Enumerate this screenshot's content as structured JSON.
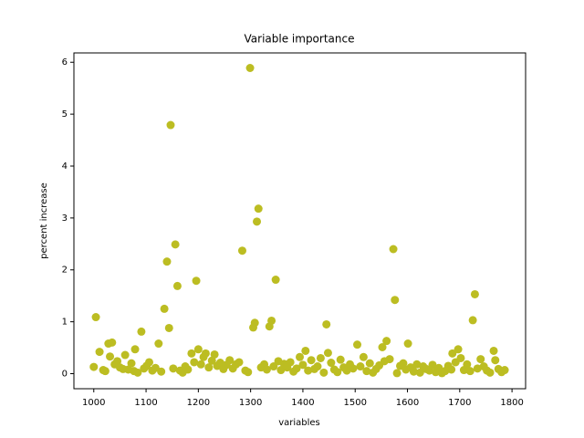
{
  "chart_data": {
    "type": "scatter",
    "title": "Variable importance",
    "x_label": "variables",
    "y_label": "percent increase",
    "color": "#bcbd22",
    "xlim": [
      962,
      1826
    ],
    "ylim": [
      -0.29,
      6.18
    ],
    "xticks": [
      1000,
      1100,
      1200,
      1300,
      1400,
      1500,
      1600,
      1700,
      1800
    ],
    "yticks": [
      0,
      1,
      2,
      3,
      4,
      5,
      6
    ],
    "x": [
      1000,
      1004,
      1011,
      1018,
      1022,
      1028,
      1031,
      1035,
      1040,
      1045,
      1050,
      1056,
      1060,
      1066,
      1072,
      1077,
      1079,
      1084,
      1091,
      1096,
      1101,
      1106,
      1112,
      1118,
      1124,
      1129,
      1135,
      1140,
      1144,
      1147,
      1152,
      1156,
      1160,
      1165,
      1170,
      1175,
      1180,
      1187,
      1192,
      1196,
      1200,
      1205,
      1210,
      1214,
      1220,
      1226,
      1231,
      1236,
      1242,
      1248,
      1254,
      1260,
      1266,
      1272,
      1278,
      1284,
      1290,
      1295,
      1299,
      1305,
      1308,
      1312,
      1315,
      1320,
      1326,
      1331,
      1336,
      1340,
      1344,
      1348,
      1353,
      1358,
      1364,
      1370,
      1376,
      1382,
      1388,
      1394,
      1400,
      1405,
      1410,
      1416,
      1422,
      1428,
      1434,
      1440,
      1445,
      1448,
      1454,
      1460,
      1466,
      1472,
      1478,
      1484,
      1490,
      1496,
      1504,
      1510,
      1516,
      1522,
      1528,
      1534,
      1540,
      1546,
      1552,
      1556,
      1560,
      1566,
      1573,
      1576,
      1580,
      1586,
      1592,
      1597,
      1601,
      1606,
      1612,
      1618,
      1624,
      1630,
      1636,
      1642,
      1648,
      1654,
      1660,
      1666,
      1672,
      1678,
      1684,
      1686,
      1692,
      1697,
      1702,
      1708,
      1714,
      1720,
      1725,
      1729,
      1734,
      1740,
      1746,
      1752,
      1758,
      1765,
      1768,
      1774,
      1780,
      1786
    ],
    "values": [
      0.13,
      1.09,
      0.42,
      0.07,
      0.05,
      0.58,
      0.33,
      0.6,
      0.18,
      0.24,
      0.12,
      0.09,
      0.36,
      0.08,
      0.2,
      0.05,
      0.47,
      0.02,
      0.81,
      0.1,
      0.15,
      0.22,
      0.06,
      0.11,
      0.58,
      0.04,
      1.25,
      2.16,
      0.88,
      4.79,
      0.1,
      2.49,
      1.69,
      0.06,
      0.02,
      0.14,
      0.08,
      0.39,
      0.22,
      1.79,
      0.47,
      0.18,
      0.32,
      0.39,
      0.12,
      0.25,
      0.37,
      0.15,
      0.21,
      0.09,
      0.17,
      0.26,
      0.1,
      0.18,
      0.22,
      2.37,
      0.06,
      0.03,
      5.89,
      0.89,
      0.98,
      2.93,
      3.18,
      0.12,
      0.18,
      0.08,
      0.91,
      1.02,
      0.14,
      1.81,
      0.24,
      0.07,
      0.19,
      0.12,
      0.22,
      0.04,
      0.1,
      0.32,
      0.17,
      0.44,
      0.06,
      0.26,
      0.09,
      0.14,
      0.3,
      0.02,
      0.95,
      0.4,
      0.21,
      0.08,
      0.03,
      0.27,
      0.12,
      0.06,
      0.18,
      0.1,
      0.56,
      0.14,
      0.32,
      0.05,
      0.2,
      0.02,
      0.09,
      0.16,
      0.51,
      0.24,
      0.63,
      0.28,
      2.4,
      1.42,
      0.01,
      0.15,
      0.2,
      0.08,
      0.58,
      0.12,
      0.04,
      0.18,
      0.02,
      0.14,
      0.09,
      0.06,
      0.17,
      0.03,
      0.11,
      0.01,
      0.05,
      0.15,
      0.08,
      0.39,
      0.22,
      0.47,
      0.3,
      0.07,
      0.18,
      0.05,
      1.03,
      1.53,
      0.1,
      0.28,
      0.14,
      0.06,
      0.02,
      0.44,
      0.26,
      0.09,
      0.03,
      0.07
    ]
  }
}
